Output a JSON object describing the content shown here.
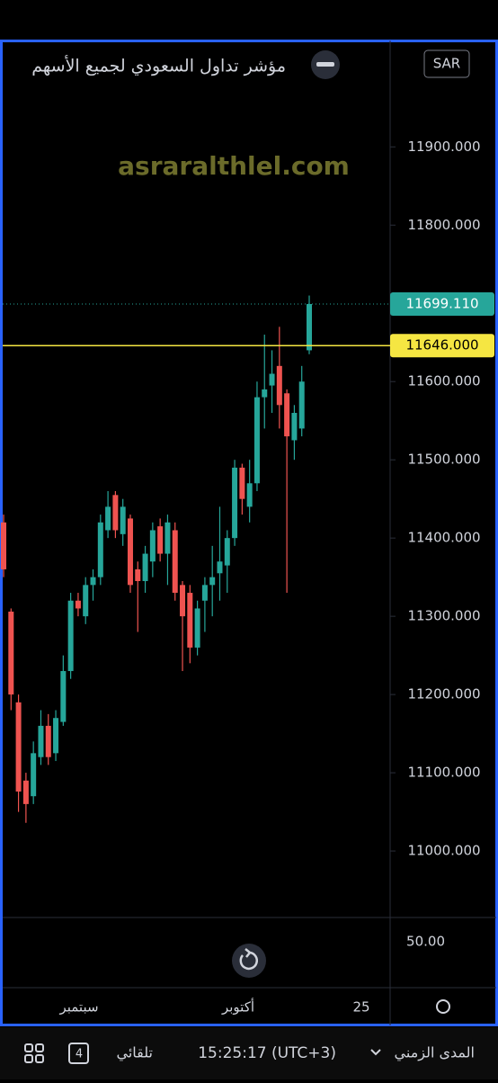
{
  "chart_data": {
    "type": "candlestick",
    "title": "مؤشر تداول السعودي لجميع الأسهم",
    "watermark": "asraralthlel.com",
    "currency": "SAR",
    "ylim": [
      10915,
      12036
    ],
    "yticks": [
      {
        "value": 11000,
        "label": "11000.000"
      },
      {
        "value": 11100,
        "label": "11100.000"
      },
      {
        "value": 11200,
        "label": "11200.000"
      },
      {
        "value": 11300,
        "label": "11300.000"
      },
      {
        "value": 11400,
        "label": "11400.000"
      },
      {
        "value": 11500,
        "label": "11500.000"
      },
      {
        "value": 11600,
        "label": "11600.000"
      },
      {
        "value": 11700,
        "label": "11700.000"
      },
      {
        "value": 11800,
        "label": "11800.000"
      },
      {
        "value": 11900,
        "label": "11900.000"
      }
    ],
    "x_tick_labels": [
      "سبتمبر",
      "أكتوبر",
      "25"
    ],
    "last_price": {
      "value": 11699.11,
      "label": "11699.110",
      "color": "#26a69a"
    },
    "hline": {
      "value": 11646,
      "label": "11646.000",
      "color": "#f5e642"
    },
    "lower_pane_label": "50.00",
    "up_color": "#26a69a",
    "down_color": "#ef5350",
    "series": {
      "open": [
        11420,
        11306,
        11190,
        11090,
        11070,
        11120,
        11160,
        11125,
        11165,
        11230,
        11320,
        11300,
        11340,
        11350,
        11410,
        11455,
        11405,
        11425,
        11360,
        11345,
        11370,
        11415,
        11380,
        11410,
        11340,
        11330,
        11260,
        11320,
        11340,
        11355,
        11365,
        11400,
        11490,
        11440,
        11470,
        11580,
        11595,
        11620,
        11585,
        11525,
        11540,
        11640
      ],
      "high": [
        11430,
        11310,
        11200,
        11100,
        11140,
        11180,
        11175,
        11180,
        11250,
        11330,
        11330,
        11350,
        11360,
        11430,
        11460,
        11460,
        11450,
        11430,
        11370,
        11390,
        11420,
        11425,
        11430,
        11420,
        11345,
        11340,
        11320,
        11350,
        11390,
        11440,
        11410,
        11500,
        11495,
        11500,
        11600,
        11660,
        11640,
        11670,
        11590,
        11570,
        11620,
        11710
      ],
      "low": [
        11350,
        11180,
        11050,
        11036,
        11060,
        11110,
        11110,
        11115,
        11160,
        11220,
        11300,
        11290,
        11320,
        11340,
        11400,
        11400,
        11390,
        11330,
        11280,
        11330,
        11350,
        11370,
        11340,
        11320,
        11230,
        11240,
        11250,
        11280,
        11300,
        11320,
        11330,
        11390,
        11430,
        11420,
        11460,
        11540,
        11560,
        11540,
        11330,
        11500,
        11530,
        11635
      ],
      "close": [
        11360,
        11200,
        11076,
        11060,
        11125,
        11160,
        11120,
        11170,
        11230,
        11320,
        11310,
        11340,
        11350,
        11420,
        11440,
        11410,
        11440,
        11340,
        11345,
        11380,
        11410,
        11380,
        11420,
        11330,
        11300,
        11260,
        11310,
        11340,
        11350,
        11370,
        11400,
        11490,
        11450,
        11470,
        11580,
        11590,
        11610,
        11570,
        11530,
        11560,
        11600,
        11699.11
      ]
    }
  },
  "toolbar": {
    "range": "المدى الزمني",
    "time": "15:25:17 (UTC+3)",
    "auto": "تلقائي",
    "count": "4"
  }
}
